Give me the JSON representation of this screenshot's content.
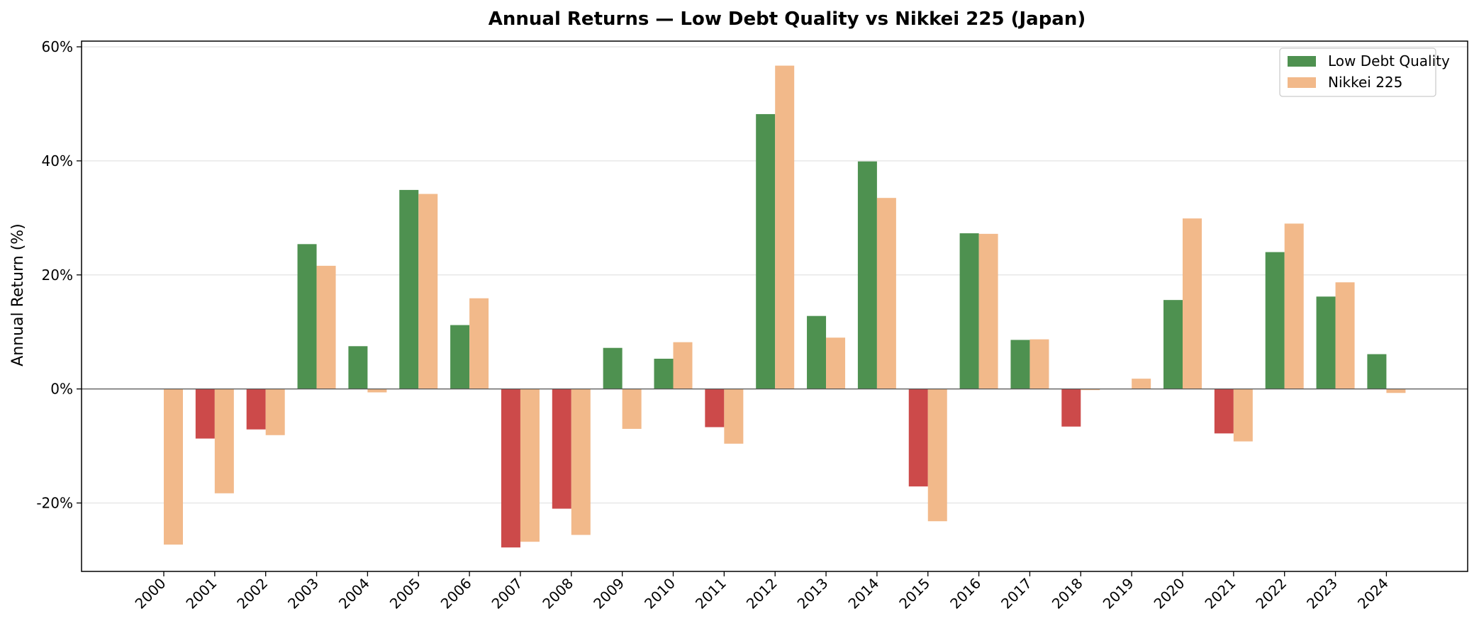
{
  "chart_data": {
    "type": "bar",
    "title": "Annual Returns — Low Debt Quality vs Nikkei 225 (Japan)",
    "xlabel": "",
    "ylabel": "Annual Return (%)",
    "ylim": [
      -32,
      61
    ],
    "yticks": [
      -20,
      0,
      20,
      40,
      60
    ],
    "ytick_labels": [
      "-20%",
      "0%",
      "20%",
      "40%",
      "60%"
    ],
    "grid": "horizontal",
    "legend_position": "top-right",
    "categories": [
      "2000",
      "2001",
      "2002",
      "2003",
      "2004",
      "2005",
      "2006",
      "2007",
      "2008",
      "2009",
      "2010",
      "2011",
      "2012",
      "2013",
      "2014",
      "2015",
      "2016",
      "2017",
      "2018",
      "2019",
      "2020",
      "2021",
      "2022",
      "2023",
      "2024"
    ],
    "series": [
      {
        "name": "Low Debt Quality",
        "color": "#4e9150",
        "negative_color": "#cc4a4a",
        "values": [
          null,
          -8.7,
          -7.1,
          25.4,
          7.5,
          34.9,
          11.2,
          -27.8,
          -21.0,
          7.2,
          5.3,
          -6.7,
          48.2,
          12.8,
          39.9,
          -17.1,
          27.3,
          8.6,
          -6.6,
          null,
          15.6,
          -7.8,
          24.0,
          16.2,
          6.1
        ]
      },
      {
        "name": "Nikkei 225",
        "color": "#f2b98a",
        "values": [
          -27.3,
          -18.3,
          -8.1,
          21.6,
          -0.6,
          34.2,
          15.9,
          -26.8,
          -25.6,
          -7.0,
          8.2,
          -9.6,
          56.7,
          9.0,
          33.5,
          -23.2,
          27.2,
          8.7,
          -0.2,
          1.8,
          29.9,
          -9.2,
          29.0,
          18.7,
          -0.7
        ]
      }
    ]
  }
}
